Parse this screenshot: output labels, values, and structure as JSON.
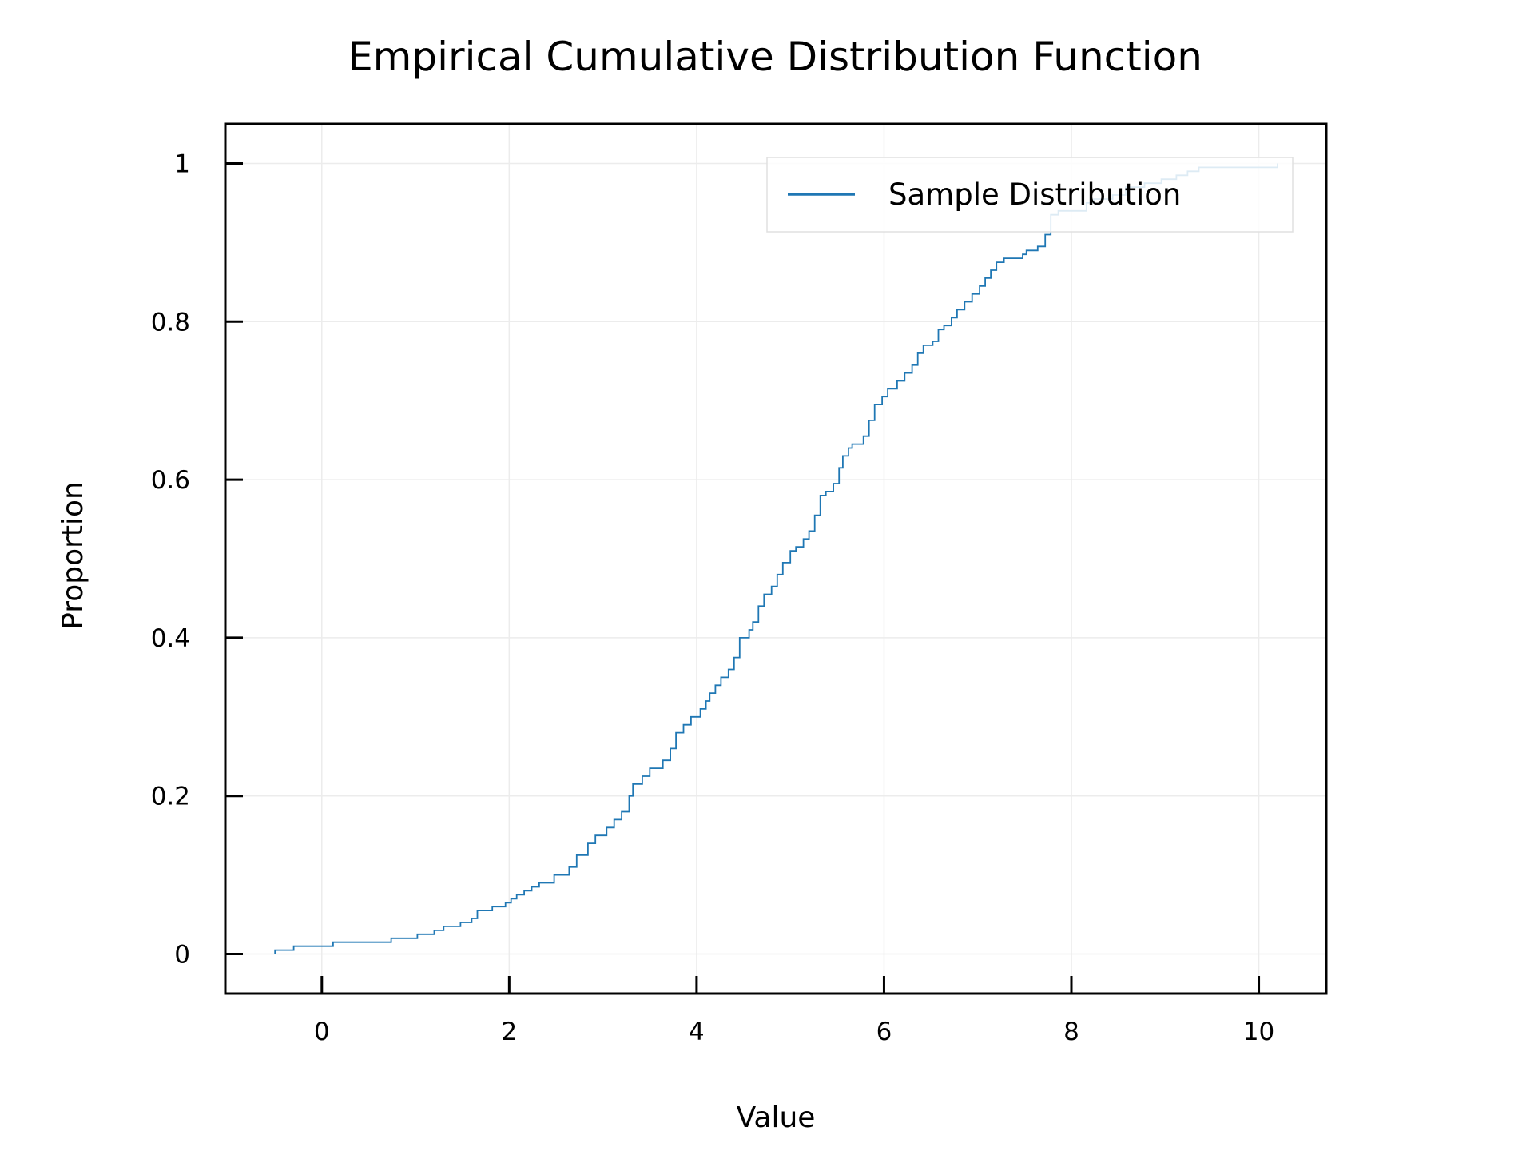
{
  "chart_data": {
    "type": "line",
    "step": true,
    "title": "Empirical Cumulative Distribution Function",
    "xlabel": "Value",
    "ylabel": "Proportion",
    "xlim": [
      -1.03,
      10.72
    ],
    "ylim": [
      -0.05,
      1.05
    ],
    "xticks": [
      0,
      2,
      4,
      6,
      8,
      10
    ],
    "xtick_labels": [
      "0",
      "2",
      "4",
      "6",
      "8",
      "10"
    ],
    "yticks": [
      0,
      0.2,
      0.4,
      0.6,
      0.8,
      1
    ],
    "ytick_labels": [
      "0",
      "0.2",
      "0.4",
      "0.6",
      "0.8",
      "1"
    ],
    "grid": true,
    "legend": {
      "position": "top-right"
    },
    "series": [
      {
        "name": "Sample Distribution",
        "color": "#1f77b4",
        "points": [
          [
            -0.5,
            0.0
          ],
          [
            -0.5,
            0.005
          ],
          [
            -0.3,
            0.01
          ],
          [
            0.12,
            0.015
          ],
          [
            0.74,
            0.02
          ],
          [
            1.02,
            0.025
          ],
          [
            1.2,
            0.03
          ],
          [
            1.3,
            0.035
          ],
          [
            1.48,
            0.04
          ],
          [
            1.6,
            0.045
          ],
          [
            1.66,
            0.055
          ],
          [
            1.82,
            0.06
          ],
          [
            1.96,
            0.065
          ],
          [
            2.02,
            0.07
          ],
          [
            2.08,
            0.075
          ],
          [
            2.16,
            0.08
          ],
          [
            2.24,
            0.085
          ],
          [
            2.32,
            0.09
          ],
          [
            2.48,
            0.1
          ],
          [
            2.64,
            0.11
          ],
          [
            2.72,
            0.125
          ],
          [
            2.84,
            0.14
          ],
          [
            2.92,
            0.15
          ],
          [
            3.04,
            0.16
          ],
          [
            3.12,
            0.17
          ],
          [
            3.2,
            0.18
          ],
          [
            3.28,
            0.2
          ],
          [
            3.32,
            0.215
          ],
          [
            3.42,
            0.225
          ],
          [
            3.5,
            0.235
          ],
          [
            3.64,
            0.245
          ],
          [
            3.72,
            0.26
          ],
          [
            3.78,
            0.28
          ],
          [
            3.86,
            0.29
          ],
          [
            3.94,
            0.3
          ],
          [
            4.04,
            0.31
          ],
          [
            4.1,
            0.32
          ],
          [
            4.14,
            0.33
          ],
          [
            4.2,
            0.34
          ],
          [
            4.26,
            0.35
          ],
          [
            4.34,
            0.36
          ],
          [
            4.4,
            0.375
          ],
          [
            4.46,
            0.4
          ],
          [
            4.56,
            0.41
          ],
          [
            4.6,
            0.42
          ],
          [
            4.66,
            0.44
          ],
          [
            4.72,
            0.455
          ],
          [
            4.8,
            0.465
          ],
          [
            4.86,
            0.48
          ],
          [
            4.92,
            0.495
          ],
          [
            5.0,
            0.51
          ],
          [
            5.06,
            0.515
          ],
          [
            5.14,
            0.525
          ],
          [
            5.2,
            0.535
          ],
          [
            5.26,
            0.555
          ],
          [
            5.32,
            0.58
          ],
          [
            5.38,
            0.585
          ],
          [
            5.46,
            0.595
          ],
          [
            5.52,
            0.615
          ],
          [
            5.56,
            0.63
          ],
          [
            5.62,
            0.64
          ],
          [
            5.66,
            0.645
          ],
          [
            5.78,
            0.655
          ],
          [
            5.84,
            0.675
          ],
          [
            5.9,
            0.695
          ],
          [
            5.98,
            0.705
          ],
          [
            6.04,
            0.715
          ],
          [
            6.14,
            0.725
          ],
          [
            6.22,
            0.735
          ],
          [
            6.3,
            0.745
          ],
          [
            6.36,
            0.76
          ],
          [
            6.42,
            0.77
          ],
          [
            6.52,
            0.775
          ],
          [
            6.58,
            0.79
          ],
          [
            6.64,
            0.795
          ],
          [
            6.72,
            0.805
          ],
          [
            6.78,
            0.815
          ],
          [
            6.86,
            0.825
          ],
          [
            6.94,
            0.835
          ],
          [
            7.02,
            0.845
          ],
          [
            7.08,
            0.855
          ],
          [
            7.14,
            0.865
          ],
          [
            7.2,
            0.875
          ],
          [
            7.28,
            0.88
          ],
          [
            7.48,
            0.885
          ],
          [
            7.52,
            0.89
          ],
          [
            7.64,
            0.895
          ],
          [
            7.72,
            0.91
          ],
          [
            7.78,
            0.935
          ],
          [
            7.86,
            0.94
          ],
          [
            8.16,
            0.95
          ],
          [
            8.24,
            0.955
          ],
          [
            8.44,
            0.96
          ],
          [
            8.58,
            0.97
          ],
          [
            8.78,
            0.975
          ],
          [
            8.96,
            0.98
          ],
          [
            9.12,
            0.985
          ],
          [
            9.24,
            0.99
          ],
          [
            9.36,
            0.995
          ],
          [
            10.2,
            1.0
          ]
        ]
      }
    ]
  }
}
